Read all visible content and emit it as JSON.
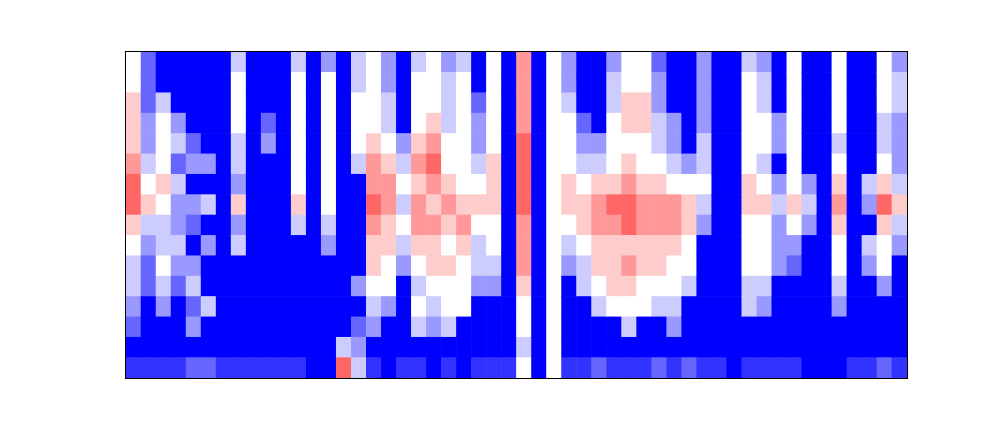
{
  "chart_data": {
    "type": "heatmap",
    "xlim": [
      0,
      52
    ],
    "ylim": [
      0,
      16
    ],
    "xticks": [],
    "yticks": [],
    "tick_labels": false,
    "zlim": [
      0,
      10
    ],
    "cells": [
      [
        5,
        5,
        6,
        6,
        6,
        7,
        8,
        8,
        6,
        5,
        4,
        4,
        3,
        2,
        0,
        1
      ],
      [
        2,
        2,
        2,
        3,
        3,
        4,
        5,
        6,
        4,
        3,
        2,
        2,
        0,
        0,
        0,
        1
      ],
      [
        0,
        0,
        4,
        5,
        5,
        5,
        6,
        5,
        4,
        4,
        5,
        4,
        3,
        0,
        0,
        1
      ],
      [
        0,
        0,
        0,
        3,
        4,
        2,
        4,
        3,
        3,
        4,
        3,
        2,
        0,
        0,
        0,
        1
      ],
      [
        0,
        0,
        0,
        0,
        2,
        3,
        0,
        3,
        2,
        0,
        3,
        4,
        2,
        3,
        0,
        2
      ],
      [
        0,
        0,
        0,
        0,
        0,
        3,
        0,
        4,
        0,
        3,
        0,
        0,
        4,
        0,
        0,
        2
      ],
      [
        0,
        0,
        0,
        0,
        0,
        0,
        0,
        0,
        0,
        0,
        0,
        0,
        0,
        0,
        0,
        1
      ],
      [
        4,
        5,
        5,
        5,
        4,
        4,
        3,
        6,
        3,
        4,
        0,
        0,
        0,
        0,
        0,
        1
      ],
      [
        0,
        0,
        0,
        0,
        0,
        0,
        0,
        0,
        0,
        0,
        0,
        0,
        0,
        0,
        0,
        1
      ],
      [
        0,
        0,
        0,
        2,
        3,
        0,
        0,
        0,
        0,
        0,
        0,
        0,
        0,
        0,
        0,
        1
      ],
      [
        0,
        0,
        0,
        0,
        0,
        0,
        0,
        0,
        0,
        0,
        0,
        0,
        0,
        0,
        0,
        1
      ],
      [
        4,
        5,
        5,
        5,
        5,
        5,
        5,
        6,
        4,
        0,
        0,
        0,
        0,
        0,
        0,
        1
      ],
      [
        0,
        0,
        0,
        0,
        0,
        0,
        0,
        0,
        0,
        0,
        0,
        0,
        0,
        0,
        0,
        0
      ],
      [
        3,
        5,
        5,
        5,
        5,
        5,
        5,
        5,
        4,
        3,
        0,
        0,
        0,
        0,
        0,
        0
      ],
      [
        0,
        0,
        0,
        0,
        0,
        0,
        0,
        0,
        0,
        0,
        0,
        0,
        0,
        0,
        4,
        8
      ],
      [
        4,
        4,
        5,
        5,
        5,
        4,
        0,
        0,
        0,
        0,
        0,
        3,
        0,
        2,
        3,
        4
      ],
      [
        5,
        5,
        5,
        5,
        6,
        7,
        7,
        8,
        7,
        6,
        6,
        5,
        4,
        3,
        0,
        1
      ],
      [
        3,
        3,
        4,
        4,
        5,
        6,
        7,
        7,
        6,
        6,
        5,
        5,
        3,
        0,
        0,
        0
      ],
      [
        0,
        0,
        0,
        0,
        3,
        4,
        5,
        4,
        5,
        4,
        3,
        0,
        0,
        0,
        0,
        1
      ],
      [
        4,
        5,
        5,
        5,
        6,
        7,
        6,
        7,
        7,
        6,
        5,
        4,
        5,
        4,
        0,
        1
      ],
      [
        5,
        5,
        5,
        6,
        7,
        8,
        7,
        6,
        7,
        6,
        6,
        5,
        4,
        3,
        0,
        0
      ],
      [
        3,
        4,
        4,
        4,
        5,
        5,
        6,
        7,
        6,
        5,
        6,
        5,
        5,
        4,
        0,
        1
      ],
      [
        4,
        5,
        5,
        5,
        5,
        5,
        5,
        6,
        7,
        6,
        5,
        5,
        5,
        0,
        0,
        0
      ],
      [
        0,
        0,
        2,
        3,
        3,
        4,
        5,
        6,
        5,
        4,
        4,
        3,
        0,
        0,
        0,
        1
      ],
      [
        5,
        5,
        5,
        5,
        5,
        6,
        6,
        6,
        5,
        5,
        4,
        3,
        0,
        0,
        0,
        1
      ],
      [
        0,
        0,
        0,
        0,
        0,
        0,
        0,
        0,
        0,
        0,
        0,
        0,
        0,
        0,
        0,
        1
      ],
      [
        7,
        7,
        7,
        7,
        8,
        8,
        8,
        8,
        7,
        7,
        7,
        6,
        5,
        5,
        4,
        5
      ],
      [
        0,
        0,
        0,
        0,
        0,
        0,
        0,
        0,
        0,
        0,
        0,
        0,
        0,
        0,
        0,
        0
      ],
      [
        5,
        5,
        5,
        5,
        5,
        5,
        5,
        5,
        5,
        5,
        5,
        5,
        5,
        5,
        5,
        5
      ],
      [
        3,
        3,
        4,
        5,
        5,
        5,
        6,
        6,
        5,
        4,
        3,
        0,
        0,
        0,
        0,
        1
      ],
      [
        0,
        0,
        0,
        2,
        3,
        4,
        5,
        6,
        6,
        5,
        4,
        4,
        0,
        0,
        0,
        1
      ],
      [
        0,
        0,
        0,
        0,
        3,
        4,
        6,
        7,
        7,
        6,
        6,
        5,
        4,
        0,
        0,
        2
      ],
      [
        3,
        4,
        4,
        5,
        5,
        5,
        6,
        8,
        7,
        6,
        6,
        6,
        5,
        0,
        0,
        1
      ],
      [
        5,
        5,
        6,
        6,
        5,
        6,
        7,
        8,
        8,
        6,
        7,
        6,
        5,
        4,
        0,
        1
      ],
      [
        5,
        5,
        6,
        6,
        5,
        5,
        6,
        7,
        7,
        6,
        6,
        5,
        5,
        0,
        0,
        1
      ],
      [
        2,
        3,
        3,
        4,
        4,
        5,
        6,
        7,
        7,
        6,
        6,
        5,
        4,
        0,
        0,
        2
      ],
      [
        0,
        0,
        0,
        3,
        3,
        4,
        5,
        7,
        7,
        6,
        5,
        5,
        4,
        3,
        0,
        1
      ],
      [
        0,
        0,
        0,
        0,
        0,
        3,
        5,
        6,
        6,
        5,
        5,
        4,
        0,
        0,
        0,
        2
      ],
      [
        3,
        3,
        3,
        3,
        4,
        4,
        5,
        4,
        3,
        0,
        0,
        0,
        0,
        0,
        0,
        1
      ],
      [
        0,
        0,
        0,
        0,
        0,
        0,
        0,
        0,
        0,
        0,
        0,
        0,
        0,
        0,
        0,
        1
      ],
      [
        0,
        0,
        0,
        0,
        0,
        0,
        0,
        0,
        0,
        0,
        0,
        0,
        0,
        0,
        0,
        0
      ],
      [
        4,
        5,
        5,
        5,
        5,
        5,
        6,
        6,
        5,
        5,
        5,
        4,
        4,
        0,
        0,
        1
      ],
      [
        3,
        4,
        4,
        5,
        5,
        4,
        5,
        6,
        5,
        5,
        5,
        4,
        3,
        0,
        0,
        1
      ],
      [
        0,
        0,
        0,
        3,
        3,
        0,
        3,
        4,
        3,
        3,
        3,
        0,
        0,
        0,
        0,
        1
      ],
      [
        5,
        5,
        5,
        5,
        5,
        5,
        5,
        6,
        5,
        3,
        2,
        0,
        0,
        0,
        0,
        1
      ],
      [
        0,
        0,
        0,
        0,
        0,
        0,
        3,
        4,
        3,
        0,
        0,
        0,
        0,
        0,
        0,
        0
      ],
      [
        0,
        0,
        0,
        0,
        0,
        0,
        0,
        0,
        0,
        0,
        0,
        0,
        0,
        0,
        0,
        0
      ],
      [
        5,
        5,
        5,
        5,
        4,
        5,
        6,
        7,
        6,
        5,
        5,
        4,
        3,
        0,
        0,
        0
      ],
      [
        0,
        0,
        0,
        0,
        0,
        0,
        0,
        0,
        0,
        0,
        0,
        0,
        0,
        0,
        0,
        1
      ],
      [
        0,
        0,
        0,
        0,
        0,
        0,
        4,
        3,
        0,
        4,
        3,
        0,
        0,
        0,
        0,
        1
      ],
      [
        5,
        5,
        5,
        4,
        4,
        5,
        6,
        8,
        6,
        5,
        5,
        3,
        0,
        0,
        0,
        2
      ],
      [
        3,
        4,
        4,
        3,
        3,
        3,
        4,
        6,
        4,
        3,
        0,
        0,
        0,
        0,
        0,
        1
      ]
    ]
  }
}
